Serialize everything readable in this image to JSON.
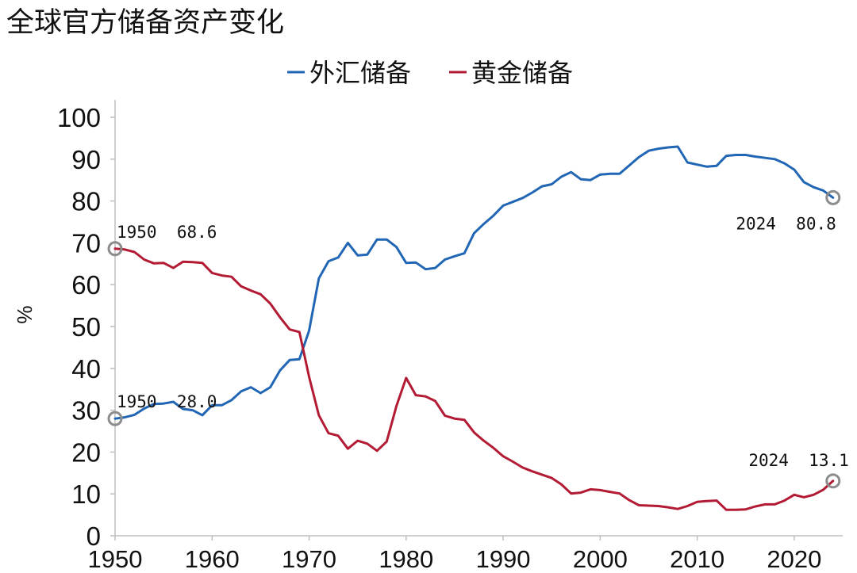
{
  "chart_data": {
    "type": "line",
    "title": "全球官方储备资产变化",
    "ylabel": "%",
    "xlabel": "",
    "xlim": [
      1950,
      2025
    ],
    "ylim": [
      0,
      100
    ],
    "x_ticks": [
      1950,
      1960,
      1970,
      1980,
      1990,
      2000,
      2010,
      2020
    ],
    "y_ticks": [
      0,
      10,
      20,
      30,
      40,
      50,
      60,
      70,
      80,
      90,
      100
    ],
    "grid": false,
    "legend_position": "top-center",
    "series": [
      {
        "name": "外汇储备",
        "color": "#2166b4",
        "x": [
          1950,
          1951,
          1952,
          1953,
          1954,
          1955,
          1956,
          1957,
          1958,
          1959,
          1960,
          1961,
          1962,
          1963,
          1964,
          1965,
          1966,
          1967,
          1968,
          1969,
          1970,
          1971,
          1972,
          1973,
          1974,
          1975,
          1976,
          1977,
          1978,
          1979,
          1980,
          1981,
          1982,
          1983,
          1984,
          1985,
          1986,
          1987,
          1988,
          1989,
          1990,
          1991,
          1992,
          1993,
          1994,
          1995,
          1996,
          1997,
          1998,
          1999,
          2000,
          2001,
          2002,
          2003,
          2004,
          2005,
          2006,
          2007,
          2008,
          2009,
          2010,
          2011,
          2012,
          2013,
          2014,
          2015,
          2016,
          2017,
          2018,
          2019,
          2020,
          2021,
          2022,
          2023,
          2024
        ],
        "values": [
          28.0,
          28.3,
          28.9,
          30.4,
          31.5,
          31.6,
          32.0,
          30.3,
          30.0,
          28.8,
          31.2,
          31.2,
          32.4,
          34.5,
          35.5,
          34.1,
          35.5,
          39.5,
          42.0,
          42.2,
          49.0,
          61.5,
          65.6,
          66.5,
          70.0,
          67.0,
          67.2,
          70.8,
          70.8,
          69.0,
          65.2,
          65.3,
          63.7,
          64.0,
          66.0,
          66.8,
          67.5,
          72.3,
          74.5,
          76.5,
          78.9,
          79.8,
          80.7,
          82.0,
          83.5,
          84.0,
          85.8,
          86.9,
          85.2,
          85.0,
          86.3,
          86.5,
          86.5,
          88.5,
          90.5,
          92.0,
          92.5,
          92.8,
          93.0,
          89.2,
          88.7,
          88.2,
          88.4,
          90.8,
          91.0,
          91.0,
          90.6,
          90.3,
          90.0,
          89.0,
          87.5,
          84.5,
          83.3,
          82.5,
          80.8
        ]
      },
      {
        "name": "黄金储备",
        "color": "#b31b34",
        "x": [
          1950,
          1951,
          1952,
          1953,
          1954,
          1955,
          1956,
          1957,
          1958,
          1959,
          1960,
          1961,
          1962,
          1963,
          1964,
          1965,
          1966,
          1967,
          1968,
          1969,
          1970,
          1971,
          1972,
          1973,
          1974,
          1975,
          1976,
          1977,
          1978,
          1979,
          1980,
          1981,
          1982,
          1983,
          1984,
          1985,
          1986,
          1987,
          1988,
          1989,
          1990,
          1991,
          1992,
          1993,
          1994,
          1995,
          1996,
          1997,
          1998,
          1999,
          2000,
          2001,
          2002,
          2003,
          2004,
          2005,
          2006,
          2007,
          2008,
          2009,
          2010,
          2011,
          2012,
          2013,
          2014,
          2015,
          2016,
          2017,
          2018,
          2019,
          2020,
          2021,
          2022,
          2023,
          2024
        ],
        "values": [
          68.6,
          68.4,
          67.8,
          66.0,
          65.1,
          65.2,
          64.0,
          65.5,
          65.4,
          65.2,
          62.8,
          62.2,
          61.9,
          59.6,
          58.6,
          57.7,
          55.5,
          52.2,
          49.3,
          48.7,
          38.0,
          28.8,
          24.5,
          23.9,
          20.8,
          22.7,
          22.0,
          20.3,
          22.5,
          31.0,
          37.7,
          33.6,
          33.3,
          32.2,
          28.7,
          28.0,
          27.7,
          24.7,
          22.7,
          21.0,
          19.0,
          17.7,
          16.3,
          15.4,
          14.6,
          13.8,
          12.3,
          10.1,
          10.3,
          11.1,
          10.9,
          10.5,
          10.1,
          8.5,
          7.3,
          7.2,
          7.1,
          6.8,
          6.4,
          7.1,
          8.1,
          8.3,
          8.4,
          6.2,
          6.2,
          6.3,
          7.0,
          7.5,
          7.5,
          8.4,
          9.8,
          9.2,
          9.8,
          11.0,
          13.1
        ]
      }
    ],
    "annotations": [
      {
        "text": "1950  68.6",
        "x": 1950,
        "y": 68.6,
        "anchor": "above-right"
      },
      {
        "text": "1950  28.0",
        "x": 1950,
        "y": 28.0,
        "anchor": "above-right"
      },
      {
        "text": "2024  80.8",
        "x": 2024,
        "y": 80.8,
        "anchor": "below-left"
      },
      {
        "text": "2024  13.1",
        "x": 2024,
        "y": 13.1,
        "anchor": "above-left"
      }
    ],
    "marker_color": "#8c8c8c"
  }
}
